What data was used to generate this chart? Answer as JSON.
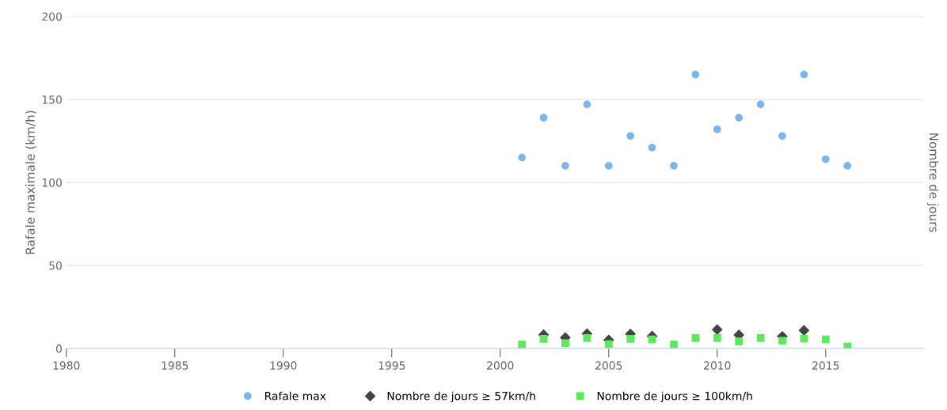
{
  "chart_data": {
    "type": "scatter",
    "ylabel": "Rafale maximale (km/h)",
    "y2label": "Nombre de jours",
    "x": [
      2001,
      2002,
      2003,
      2004,
      2005,
      2006,
      2007,
      2008,
      2009,
      2010,
      2011,
      2012,
      2013,
      2014,
      2015,
      2016
    ],
    "series": [
      {
        "name": "Rafale max",
        "color": "#7cb5ec",
        "marker": "circle",
        "values": [
          115,
          139,
          110,
          147,
          110,
          128,
          121,
          110,
          165,
          132,
          139,
          147,
          128,
          165,
          114,
          110
        ]
      },
      {
        "name": "Nombre de jours ≥ 57km/h",
        "color": "#434348",
        "marker": "diamond",
        "values": [
          null,
          8.3,
          6.6,
          8.9,
          5.1,
          8.7,
          7.5,
          null,
          null,
          11.4,
          8.2,
          null,
          7.3,
          10.9,
          null,
          null
        ]
      },
      {
        "name": "Nombre de jours ≥ 100km/h",
        "color": "#5ee85e",
        "marker": "square",
        "values": [
          2.4,
          5.8,
          3.2,
          6.3,
          2.6,
          5.8,
          5.5,
          2.4,
          6.3,
          6.3,
          4.3,
          6.3,
          4.6,
          6,
          5.5,
          1.2
        ]
      }
    ],
    "xlim": [
      1980,
      2019.5
    ],
    "xticks": [
      1980,
      1985,
      1990,
      1995,
      2000,
      2005,
      2010,
      2015
    ],
    "ylim": [
      0,
      200
    ],
    "yticks": [
      0,
      50,
      100,
      150,
      200
    ],
    "grid": "y",
    "legend": "bottom"
  }
}
